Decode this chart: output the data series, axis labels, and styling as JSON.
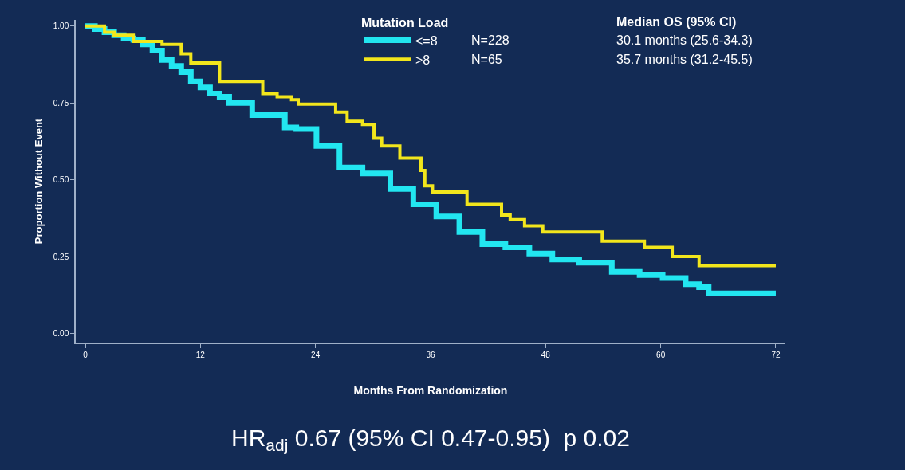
{
  "chart_data": {
    "type": "step",
    "xlabel": "Months From Randomization",
    "ylabel": "Proportion Without Event",
    "legend_title": "Mutation Load",
    "series": [
      {
        "name": "<=8",
        "color": "#22e6f0",
        "x": [
          0,
          1,
          2,
          3,
          4,
          5,
          6,
          7,
          8,
          9,
          10,
          11,
          12,
          13,
          14,
          15,
          17.4,
          20.8,
          22,
          24.1,
          26.5,
          28.9,
          31.8,
          34.2,
          36.6,
          39.0,
          41.4,
          43.8,
          46.3,
          48.7,
          51.5,
          54.9,
          57.8,
          60.2,
          62.6,
          64,
          65,
          72
        ],
        "values": [
          1.0,
          0.99,
          0.98,
          0.97,
          0.96,
          0.955,
          0.94,
          0.92,
          0.89,
          0.87,
          0.85,
          0.82,
          0.8,
          0.78,
          0.77,
          0.75,
          0.71,
          0.67,
          0.665,
          0.61,
          0.54,
          0.52,
          0.47,
          0.42,
          0.38,
          0.33,
          0.29,
          0.28,
          0.26,
          0.24,
          0.23,
          0.2,
          0.19,
          0.18,
          0.16,
          0.15,
          0.13,
          0.13
        ]
      },
      {
        "name": ">8",
        "color": "#f2e61c",
        "x": [
          0,
          2,
          3,
          5,
          8,
          10,
          11,
          14,
          18.5,
          20,
          21.5,
          22.2,
          26.1,
          27.3,
          28.9,
          30.1,
          30.9,
          32.8,
          35.0,
          35.4,
          36.2,
          39.8,
          43.4,
          44.3,
          45.8,
          47.7,
          53.9,
          58.3,
          61.2,
          64.0,
          72
        ],
        "values": [
          1.0,
          0.98,
          0.97,
          0.95,
          0.94,
          0.91,
          0.88,
          0.82,
          0.78,
          0.77,
          0.76,
          0.746,
          0.72,
          0.69,
          0.68,
          0.635,
          0.61,
          0.57,
          0.53,
          0.48,
          0.46,
          0.42,
          0.385,
          0.37,
          0.35,
          0.33,
          0.3,
          0.28,
          0.25,
          0.22,
          0.22
        ]
      }
    ],
    "xlim": [
      -1,
      73
    ],
    "xticks": [
      0,
      12,
      24,
      36,
      48,
      60,
      72
    ],
    "ylim": [
      -0.03,
      1.02
    ],
    "yticks": [
      {
        "value": 0,
        "label": "0.00"
      },
      {
        "value": 0.25,
        "label": "0.25"
      },
      {
        "value": 0.5,
        "label": "0.50"
      },
      {
        "value": 0.75,
        "label": "0.75"
      },
      {
        "value": 1,
        "label": "1.00"
      }
    ],
    "grid": false,
    "legend": "top right",
    "marker": "none",
    "line_style": "solid",
    "annotations": [
      "Median OS (95% CI)",
      "N=228",
      "30.1 months (25.6-34.3)",
      "N=65",
      "35.7 months (31.2-45.5)",
      "HR$_{adj}$ 0.67 (95% CI 0.47-0.95)  p 0.02"
    ]
  }
}
